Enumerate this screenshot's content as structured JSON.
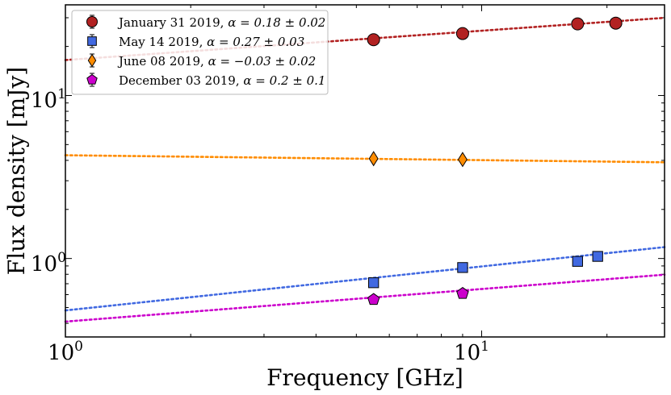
{
  "chart_data": {
    "type": "scatter",
    "xscale": "log",
    "yscale": "log",
    "xlim": [
      1,
      27.5
    ],
    "ylim": [
      0.33,
      36
    ],
    "xlabel": "Frequency [GHz]",
    "ylabel": "Flux density [mJy]",
    "x_major_ticks": [
      {
        "value": 1,
        "base": "10",
        "exp": "0"
      },
      {
        "value": 10,
        "base": "10",
        "exp": "1"
      }
    ],
    "y_major_ticks": [
      {
        "value": 1,
        "base": "10",
        "exp": "0"
      },
      {
        "value": 10,
        "base": "10",
        "exp": "1"
      }
    ],
    "legend_location": "upper-left",
    "series": [
      {
        "name": "January 31 2019",
        "alpha_text": "α = 0.18 ± 0.02",
        "marker": "circle",
        "color": "#b22222",
        "x": [
          5.5,
          9.0,
          17.0,
          21.0
        ],
        "y": [
          22.0,
          24.0,
          27.5,
          27.8
        ],
        "fit": {
          "amplitude": 16.5,
          "alpha": 0.18
        }
      },
      {
        "name": "May 14 2019",
        "alpha_text": "α = 0.27 ± 0.03",
        "marker": "square",
        "color": "#4169e1",
        "x": [
          5.5,
          9.0,
          17.0,
          19.0
        ],
        "y": [
          0.71,
          0.88,
          0.96,
          1.03
        ],
        "fit": {
          "amplitude": 0.48,
          "alpha": 0.27
        }
      },
      {
        "name": "June 08 2019",
        "alpha_text": "α = −0.03 ± 0.02",
        "marker": "diamond",
        "color": "#ff8c00",
        "x": [
          5.5,
          9.0
        ],
        "y": [
          4.1,
          4.05
        ],
        "fit": {
          "amplitude": 4.3,
          "alpha": -0.03
        }
      },
      {
        "name": "December 03 2019",
        "alpha_text": "α = 0.2 ± 0.1",
        "marker": "pentagon",
        "color": "#cc00cc",
        "x": [
          5.5,
          9.0
        ],
        "y": [
          0.56,
          0.61
        ],
        "fit": {
          "amplitude": 0.41,
          "alpha": 0.2
        }
      }
    ]
  }
}
